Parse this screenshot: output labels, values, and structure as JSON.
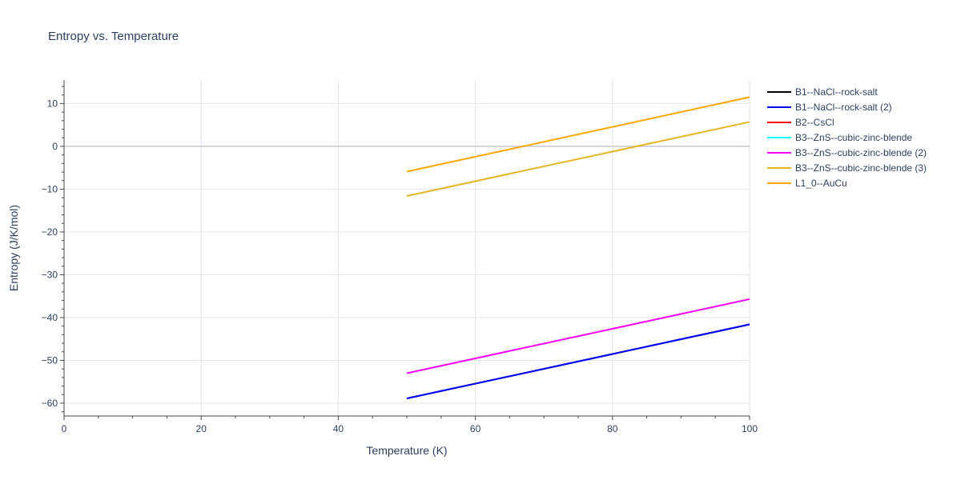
{
  "chart_data": {
    "type": "line",
    "title": "Entropy vs. Temperature",
    "xlabel": "Temperature (K)",
    "ylabel": "Entropy (J/K/mol)",
    "xlim": [
      0,
      100
    ],
    "ylim": [
      -63,
      15.5
    ],
    "x_ticks": [
      0,
      20,
      40,
      60,
      80,
      100
    ],
    "x_tick_labels": [
      "0",
      "20",
      "40",
      "60",
      "80",
      "100"
    ],
    "y_ticks": [
      -60,
      -50,
      -40,
      -30,
      -20,
      -10,
      0,
      10
    ],
    "y_tick_labels": [
      "−60",
      "−50",
      "−40",
      "−30",
      "−20",
      "−10",
      "0",
      "10"
    ],
    "grid": true,
    "legend_position": "right",
    "series": [
      {
        "name": "B1--NaCl--rock-salt",
        "color": "#000000",
        "x": [
          50,
          100
        ],
        "y": [
          -58.9,
          -41.6
        ]
      },
      {
        "name": "B1--NaCl--rock-salt (2)",
        "color": "#0000ff",
        "x": [
          50,
          100
        ],
        "y": [
          -58.9,
          -41.6
        ]
      },
      {
        "name": "B2--CsCl",
        "color": "#ff0000",
        "x": [],
        "y": []
      },
      {
        "name": "B3--ZnS--cubic-zinc-blende",
        "color": "#00ffff",
        "x": [],
        "y": []
      },
      {
        "name": "B3--ZnS--cubic-zinc-blende (2)",
        "color": "#ff00ff",
        "x": [
          50,
          100
        ],
        "y": [
          -53.0,
          -35.7
        ]
      },
      {
        "name": "B3--ZnS--cubic-zinc-blende (3)",
        "color": "#e6b422",
        "x": [
          50,
          100
        ],
        "y": [
          -11.6,
          5.7
        ]
      },
      {
        "name": "L1_0--AuCu",
        "color": "#ffa500",
        "x": [
          50,
          100
        ],
        "y": [
          -5.9,
          11.5
        ]
      }
    ]
  }
}
